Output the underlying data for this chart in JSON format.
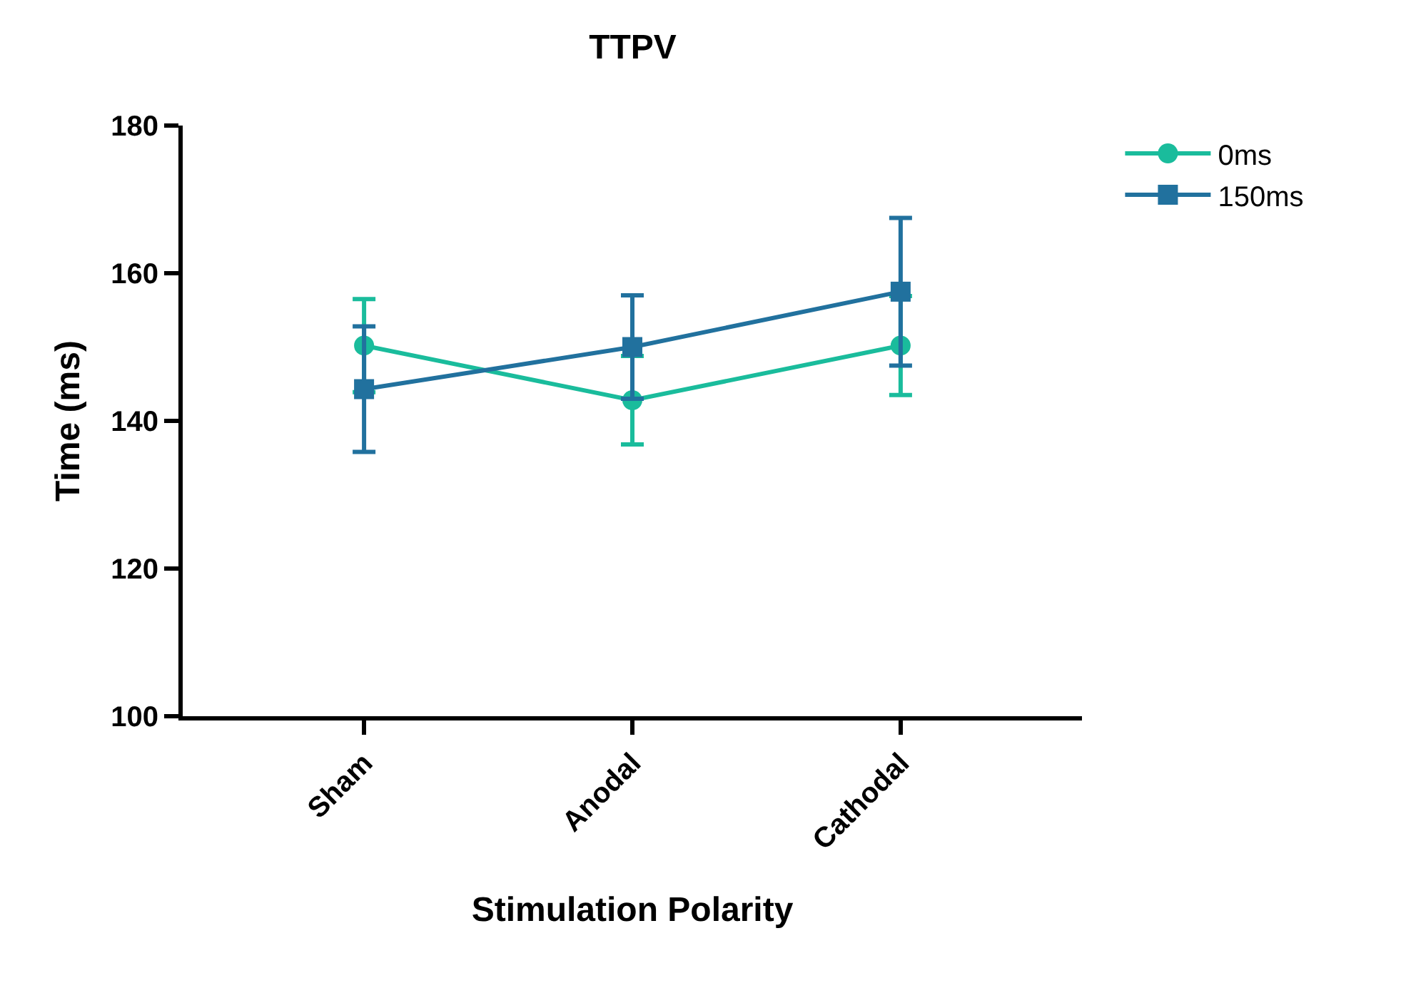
{
  "chart_data": {
    "type": "line",
    "title": "TTPV",
    "xlabel": "Stimulation Polarity",
    "ylabel": "Time (ms)",
    "categories": [
      "Sham",
      "Anodal",
      "Cathodal"
    ],
    "series": [
      {
        "name": "0ms",
        "color": "#1abc9c",
        "values": [
          150.2,
          142.8,
          150.2
        ],
        "errors": [
          6.3,
          6,
          6.7
        ],
        "marker": "circle"
      },
      {
        "name": "150ms",
        "color": "#21719e",
        "values": [
          144.3,
          150,
          157.5
        ],
        "errors": [
          8.5,
          7,
          10
        ],
        "marker": "square"
      }
    ],
    "ylim": [
      100,
      180
    ],
    "yticks": [
      100,
      120,
      140,
      160,
      180
    ],
    "grid": false,
    "legend": "top right",
    "line_style": "solid"
  }
}
